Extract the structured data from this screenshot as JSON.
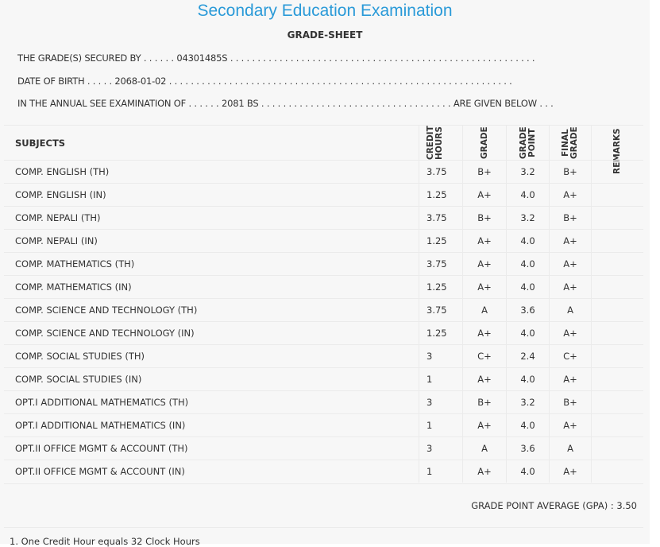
{
  "header": {
    "title": "Secondary Education Examination",
    "subtitle": "GRADE-SHEET"
  },
  "info": [
    "THE GRADE(S) SECURED BY . . . . . . 04301485S . . . . . . . . . . . . . . . . . . . . . . . . . . . . . . . . . . . . . . . . . . . . . . . . . . . . . . . .",
    "DATE OF BIRTH . . . . . 2068-01-02 . . . . . . . . . . . . . . . . . . . . . . . . . . . . . . . . . . . . . . . . . . . . . . . . . . . . . . . . . . . . . . .",
    "IN THE ANNUAL SEE EXAMINATION OF . . . . . . 2081 BS . . . . . . . . . . . . . . . . . . . . . . . . . . . . . . . . . . . ARE GIVEN BELOW . . ."
  ],
  "table": {
    "columns": [
      "SUBJECTS",
      "CREDIT HOURS",
      "GRADE",
      "GRADE POINT",
      "FINAL GRADE",
      "REMARKS"
    ],
    "rows": [
      [
        "COMP. ENGLISH (TH)",
        "3.75",
        "B+",
        "3.2",
        "B+"
      ],
      [
        "COMP. ENGLISH (IN)",
        "1.25",
        "A+",
        "4.0",
        "A+"
      ],
      [
        "COMP. NEPALI (TH)",
        "3.75",
        "B+",
        "3.2",
        "B+"
      ],
      [
        "COMP. NEPALI (IN)",
        "1.25",
        "A+",
        "4.0",
        "A+"
      ],
      [
        "COMP. MATHEMATICS (TH)",
        "3.75",
        "A+",
        "4.0",
        "A+"
      ],
      [
        "COMP. MATHEMATICS (IN)",
        "1.25",
        "A+",
        "4.0",
        "A+"
      ],
      [
        "COMP. SCIENCE AND TECHNOLOGY (TH)",
        "3.75",
        "A",
        "3.6",
        "A"
      ],
      [
        "COMP. SCIENCE AND TECHNOLOGY (IN)",
        "1.25",
        "A+",
        "4.0",
        "A+"
      ],
      [
        "COMP. SOCIAL STUDIES (TH)",
        "3",
        "C+",
        "2.4",
        "C+"
      ],
      [
        "COMP. SOCIAL STUDIES (IN)",
        "1",
        "A+",
        "4.0",
        "A+"
      ],
      [
        "OPT.I ADDITIONAL MATHEMATICS (TH)",
        "3",
        "B+",
        "3.2",
        "B+"
      ],
      [
        "OPT.I ADDITIONAL MATHEMATICS (IN)",
        "1",
        "A+",
        "4.0",
        "A+"
      ],
      [
        "OPT.II OFFICE MGMT & ACCOUNT (TH)",
        "3",
        "A",
        "3.6",
        "A"
      ],
      [
        "OPT.II OFFICE MGMT & ACCOUNT (IN)",
        "1",
        "A+",
        "4.0",
        "A+"
      ]
    ]
  },
  "gpa": "GRADE POINT AVERAGE (GPA) : 3.50",
  "note": "1. One Credit Hour equals 32 Clock Hours"
}
